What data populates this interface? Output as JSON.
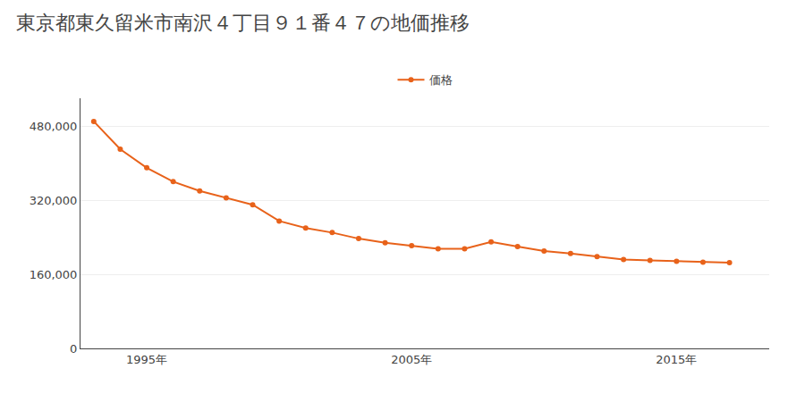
{
  "chart_data": {
    "type": "line",
    "title": "東京都東久留米市南沢４丁目９１番４７の地価推移",
    "x": [
      1993,
      1994,
      1995,
      1996,
      1997,
      1998,
      1999,
      2000,
      2001,
      2002,
      2003,
      2004,
      2005,
      2006,
      2007,
      2008,
      2009,
      2010,
      2011,
      2012,
      2013,
      2014,
      2015,
      2016,
      2017
    ],
    "series": [
      {
        "name": "価格",
        "color": "#e8621a",
        "marker": "circle",
        "line_style": "solid",
        "values": [
          490000,
          430000,
          390000,
          360000,
          340000,
          325000,
          310000,
          275000,
          260000,
          250000,
          237000,
          228000,
          222000,
          215000,
          215000,
          230000,
          220000,
          210000,
          205000,
          198000,
          192000,
          190000,
          188000,
          186000,
          185000
        ]
      }
    ],
    "xlim": [
      1992.5,
      2018.5
    ],
    "xticks": [
      {
        "value": 1995,
        "label": "1995年"
      },
      {
        "value": 2005,
        "label": "2005年"
      },
      {
        "value": 2015,
        "label": "2015年"
      }
    ],
    "ylim": [
      0,
      540000
    ],
    "yticks": [
      0,
      {
        "value": 160000,
        "label": "160,000"
      },
      {
        "value": 320000,
        "label": "320,000"
      },
      {
        "value": 480000,
        "label": "480,000"
      }
    ],
    "grid": "y",
    "legend": "top"
  }
}
